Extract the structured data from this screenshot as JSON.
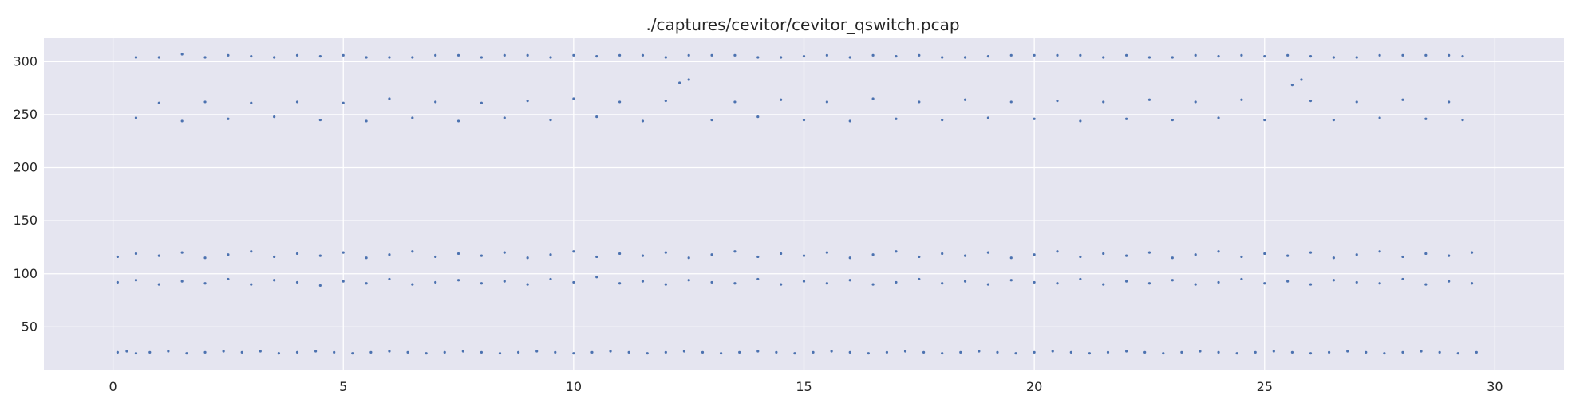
{
  "chart_data": {
    "type": "scatter",
    "title": "./captures/cevitor/cevitor_qswitch.pcap",
    "xlabel": "",
    "ylabel": "",
    "xlim": [
      -1.5,
      31.5
    ],
    "ylim": [
      9,
      322
    ],
    "xticks": [
      0,
      5,
      10,
      15,
      20,
      25,
      30
    ],
    "yticks": [
      50,
      100,
      150,
      200,
      250,
      300
    ],
    "grid": true,
    "background": "#e5e5f0",
    "grid_color": "#ffffff",
    "marker_color": "#4c72b0",
    "series": [
      {
        "points": [
          [
            0.1,
            26
          ],
          [
            0.3,
            27
          ],
          [
            0.5,
            25
          ],
          [
            0.8,
            26
          ],
          [
            1.2,
            27
          ],
          [
            1.6,
            25
          ],
          [
            2.0,
            26
          ],
          [
            2.4,
            27
          ],
          [
            2.8,
            26
          ],
          [
            3.2,
            27
          ],
          [
            3.6,
            25
          ],
          [
            4.0,
            26
          ],
          [
            4.4,
            27
          ],
          [
            4.8,
            26
          ],
          [
            5.2,
            25
          ],
          [
            5.6,
            26
          ],
          [
            6.0,
            27
          ],
          [
            6.4,
            26
          ],
          [
            6.8,
            25
          ],
          [
            7.2,
            26
          ],
          [
            7.6,
            27
          ],
          [
            8.0,
            26
          ],
          [
            8.4,
            25
          ],
          [
            8.8,
            26
          ],
          [
            9.2,
            27
          ],
          [
            9.6,
            26
          ],
          [
            10.0,
            25
          ],
          [
            10.4,
            26
          ],
          [
            10.8,
            27
          ],
          [
            11.2,
            26
          ],
          [
            11.6,
            25
          ],
          [
            12.0,
            26
          ],
          [
            12.4,
            27
          ],
          [
            12.8,
            26
          ],
          [
            13.2,
            25
          ],
          [
            13.6,
            26
          ],
          [
            14.0,
            27
          ],
          [
            14.4,
            26
          ],
          [
            14.8,
            25
          ],
          [
            15.2,
            26
          ],
          [
            15.6,
            27
          ],
          [
            16.0,
            26
          ],
          [
            16.4,
            25
          ],
          [
            16.8,
            26
          ],
          [
            17.2,
            27
          ],
          [
            17.6,
            26
          ],
          [
            18.0,
            25
          ],
          [
            18.4,
            26
          ],
          [
            18.8,
            27
          ],
          [
            19.2,
            26
          ],
          [
            19.6,
            25
          ],
          [
            20.0,
            26
          ],
          [
            20.4,
            27
          ],
          [
            20.8,
            26
          ],
          [
            21.2,
            25
          ],
          [
            21.6,
            26
          ],
          [
            22.0,
            27
          ],
          [
            22.4,
            26
          ],
          [
            22.8,
            25
          ],
          [
            23.2,
            26
          ],
          [
            23.6,
            27
          ],
          [
            24.0,
            26
          ],
          [
            24.4,
            25
          ],
          [
            24.8,
            26
          ],
          [
            25.2,
            27
          ],
          [
            25.6,
            26
          ],
          [
            26.0,
            25
          ],
          [
            26.4,
            26
          ],
          [
            26.8,
            27
          ],
          [
            27.2,
            26
          ],
          [
            27.6,
            25
          ],
          [
            28.0,
            26
          ],
          [
            28.4,
            27
          ],
          [
            28.8,
            26
          ],
          [
            29.2,
            25
          ],
          [
            29.6,
            26
          ],
          [
            0.1,
            92
          ],
          [
            0.5,
            94
          ],
          [
            1.0,
            90
          ],
          [
            1.5,
            93
          ],
          [
            2.0,
            91
          ],
          [
            2.5,
            95
          ],
          [
            3.0,
            90
          ],
          [
            3.5,
            94
          ],
          [
            4.0,
            92
          ],
          [
            4.5,
            89
          ],
          [
            5.0,
            93
          ],
          [
            5.5,
            91
          ],
          [
            6.0,
            95
          ],
          [
            6.5,
            90
          ],
          [
            7.0,
            92
          ],
          [
            7.5,
            94
          ],
          [
            8.0,
            91
          ],
          [
            8.5,
            93
          ],
          [
            9.0,
            90
          ],
          [
            9.5,
            95
          ],
          [
            10.0,
            92
          ],
          [
            10.5,
            97
          ],
          [
            11.0,
            91
          ],
          [
            11.5,
            93
          ],
          [
            12.0,
            90
          ],
          [
            12.5,
            94
          ],
          [
            13.0,
            92
          ],
          [
            13.5,
            91
          ],
          [
            14.0,
            95
          ],
          [
            14.5,
            90
          ],
          [
            15.0,
            93
          ],
          [
            15.5,
            91
          ],
          [
            16.0,
            94
          ],
          [
            16.5,
            90
          ],
          [
            17.0,
            92
          ],
          [
            17.5,
            95
          ],
          [
            18.0,
            91
          ],
          [
            18.5,
            93
          ],
          [
            19.0,
            90
          ],
          [
            19.5,
            94
          ],
          [
            20.0,
            92
          ],
          [
            20.5,
            91
          ],
          [
            21.0,
            95
          ],
          [
            21.5,
            90
          ],
          [
            22.0,
            93
          ],
          [
            22.5,
            91
          ],
          [
            23.0,
            94
          ],
          [
            23.5,
            90
          ],
          [
            24.0,
            92
          ],
          [
            24.5,
            95
          ],
          [
            25.0,
            91
          ],
          [
            25.5,
            93
          ],
          [
            26.0,
            90
          ],
          [
            26.5,
            94
          ],
          [
            27.0,
            92
          ],
          [
            27.5,
            91
          ],
          [
            28.0,
            95
          ],
          [
            28.5,
            90
          ],
          [
            29.0,
            93
          ],
          [
            29.5,
            91
          ],
          [
            0.1,
            116
          ],
          [
            0.5,
            119
          ],
          [
            1.0,
            117
          ],
          [
            1.5,
            120
          ],
          [
            2.0,
            115
          ],
          [
            2.5,
            118
          ],
          [
            3.0,
            121
          ],
          [
            3.5,
            116
          ],
          [
            4.0,
            119
          ],
          [
            4.5,
            117
          ],
          [
            5.0,
            120
          ],
          [
            5.5,
            115
          ],
          [
            6.0,
            118
          ],
          [
            6.5,
            121
          ],
          [
            7.0,
            116
          ],
          [
            7.5,
            119
          ],
          [
            8.0,
            117
          ],
          [
            8.5,
            120
          ],
          [
            9.0,
            115
          ],
          [
            9.5,
            118
          ],
          [
            10.0,
            121
          ],
          [
            10.5,
            116
          ],
          [
            11.0,
            119
          ],
          [
            11.5,
            117
          ],
          [
            12.0,
            120
          ],
          [
            12.5,
            115
          ],
          [
            13.0,
            118
          ],
          [
            13.5,
            121
          ],
          [
            14.0,
            116
          ],
          [
            14.5,
            119
          ],
          [
            15.0,
            117
          ],
          [
            15.5,
            120
          ],
          [
            16.0,
            115
          ],
          [
            16.5,
            118
          ],
          [
            17.0,
            121
          ],
          [
            17.5,
            116
          ],
          [
            18.0,
            119
          ],
          [
            18.5,
            117
          ],
          [
            19.0,
            120
          ],
          [
            19.5,
            115
          ],
          [
            20.0,
            118
          ],
          [
            20.5,
            121
          ],
          [
            21.0,
            116
          ],
          [
            21.5,
            119
          ],
          [
            22.0,
            117
          ],
          [
            22.5,
            120
          ],
          [
            23.0,
            115
          ],
          [
            23.5,
            118
          ],
          [
            24.0,
            121
          ],
          [
            24.5,
            116
          ],
          [
            25.0,
            119
          ],
          [
            25.5,
            117
          ],
          [
            26.0,
            120
          ],
          [
            26.5,
            115
          ],
          [
            27.0,
            118
          ],
          [
            27.5,
            121
          ],
          [
            28.0,
            116
          ],
          [
            28.5,
            119
          ],
          [
            29.0,
            117
          ],
          [
            29.5,
            120
          ],
          [
            0.5,
            247
          ],
          [
            1.0,
            261
          ],
          [
            1.5,
            244
          ],
          [
            2.0,
            262
          ],
          [
            2.5,
            246
          ],
          [
            3.0,
            261
          ],
          [
            3.5,
            248
          ],
          [
            4.0,
            262
          ],
          [
            4.5,
            245
          ],
          [
            5.0,
            261
          ],
          [
            5.5,
            244
          ],
          [
            6.0,
            265
          ],
          [
            6.5,
            247
          ],
          [
            7.0,
            262
          ],
          [
            7.5,
            244
          ],
          [
            8.0,
            261
          ],
          [
            8.5,
            247
          ],
          [
            9.0,
            263
          ],
          [
            9.5,
            245
          ],
          [
            10.0,
            265
          ],
          [
            10.5,
            248
          ],
          [
            11.0,
            262
          ],
          [
            11.5,
            244
          ],
          [
            12.0,
            263
          ],
          [
            12.3,
            280
          ],
          [
            12.5,
            283
          ],
          [
            13.0,
            245
          ],
          [
            13.5,
            262
          ],
          [
            14.0,
            248
          ],
          [
            14.5,
            264
          ],
          [
            15.0,
            245
          ],
          [
            15.5,
            262
          ],
          [
            16.0,
            244
          ],
          [
            16.5,
            265
          ],
          [
            17.0,
            246
          ],
          [
            17.5,
            262
          ],
          [
            18.0,
            245
          ],
          [
            18.5,
            264
          ],
          [
            19.0,
            247
          ],
          [
            19.5,
            262
          ],
          [
            20.0,
            246
          ],
          [
            20.5,
            263
          ],
          [
            21.0,
            244
          ],
          [
            21.5,
            262
          ],
          [
            22.0,
            246
          ],
          [
            22.5,
            264
          ],
          [
            23.0,
            245
          ],
          [
            23.5,
            262
          ],
          [
            24.0,
            247
          ],
          [
            24.5,
            264
          ],
          [
            25.0,
            245
          ],
          [
            25.6,
            278
          ],
          [
            25.8,
            283
          ],
          [
            26.0,
            263
          ],
          [
            26.5,
            245
          ],
          [
            27.0,
            262
          ],
          [
            27.5,
            247
          ],
          [
            28.0,
            264
          ],
          [
            28.5,
            246
          ],
          [
            29.0,
            262
          ],
          [
            29.3,
            245
          ],
          [
            0.5,
            304
          ],
          [
            1.0,
            304
          ],
          [
            1.5,
            307
          ],
          [
            2.0,
            304
          ],
          [
            2.5,
            306
          ],
          [
            3.0,
            305
          ],
          [
            3.5,
            304
          ],
          [
            4.0,
            306
          ],
          [
            4.5,
            305
          ],
          [
            5.0,
            306
          ],
          [
            5.5,
            304
          ],
          [
            6.0,
            304
          ],
          [
            6.5,
            304
          ],
          [
            7.0,
            306
          ],
          [
            7.5,
            306
          ],
          [
            8.0,
            304
          ],
          [
            8.5,
            306
          ],
          [
            9.0,
            306
          ],
          [
            9.5,
            304
          ],
          [
            10.0,
            306
          ],
          [
            10.5,
            305
          ],
          [
            11.0,
            306
          ],
          [
            11.5,
            306
          ],
          [
            12.0,
            304
          ],
          [
            12.5,
            306
          ],
          [
            13.0,
            306
          ],
          [
            13.5,
            306
          ],
          [
            14.0,
            304
          ],
          [
            14.5,
            304
          ],
          [
            15.0,
            305
          ],
          [
            15.5,
            306
          ],
          [
            16.0,
            304
          ],
          [
            16.5,
            306
          ],
          [
            17.0,
            305
          ],
          [
            17.5,
            306
          ],
          [
            18.0,
            304
          ],
          [
            18.5,
            304
          ],
          [
            19.0,
            305
          ],
          [
            19.5,
            306
          ],
          [
            20.0,
            306
          ],
          [
            20.5,
            306
          ],
          [
            21.0,
            306
          ],
          [
            21.5,
            304
          ],
          [
            22.0,
            306
          ],
          [
            22.5,
            304
          ],
          [
            23.0,
            304
          ],
          [
            23.5,
            306
          ],
          [
            24.0,
            305
          ],
          [
            24.5,
            306
          ],
          [
            25.0,
            305
          ],
          [
            25.5,
            306
          ],
          [
            26.0,
            305
          ],
          [
            26.5,
            304
          ],
          [
            27.0,
            304
          ],
          [
            27.5,
            306
          ],
          [
            28.0,
            306
          ],
          [
            28.5,
            306
          ],
          [
            29.0,
            306
          ],
          [
            29.3,
            305
          ]
        ]
      }
    ]
  }
}
